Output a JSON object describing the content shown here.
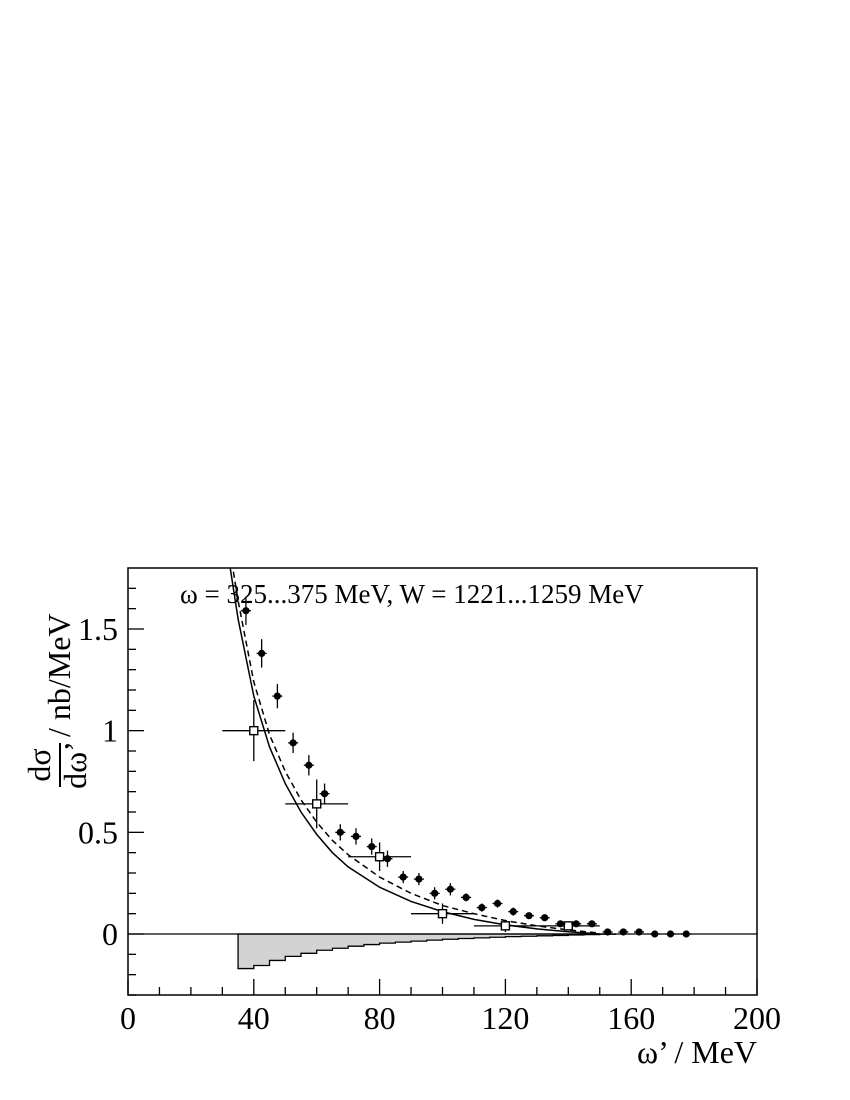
{
  "chart_data": {
    "type": "scatter",
    "annotation": "ω = 325...375 MeV, W = 1221...1259 MeV",
    "xlabel": "ω’ / MeV",
    "ylabel_numerator": "dσ",
    "ylabel_denominator": "dω’",
    "ylabel_unit": "/ nb/MeV",
    "xlim": [
      0,
      200
    ],
    "ylim": [
      -0.3,
      1.8
    ],
    "x_ticks": [
      0,
      40,
      80,
      120,
      160,
      200
    ],
    "x_tick_labels": [
      "0",
      "40",
      "80",
      "120",
      "160",
      "200"
    ],
    "y_ticks": [
      0,
      0.5,
      1,
      1.5
    ],
    "y_tick_labels": [
      "0",
      "0.5",
      "1",
      "1.5"
    ],
    "grid": false,
    "series": [
      {
        "marker": "filled-circle",
        "points": [
          {
            "x": 37.5,
            "y": 1.59,
            "yerr": 0.07
          },
          {
            "x": 42.5,
            "y": 1.38,
            "yerr": 0.07
          },
          {
            "x": 47.5,
            "y": 1.17,
            "yerr": 0.06
          },
          {
            "x": 52.5,
            "y": 0.94,
            "yerr": 0.05
          },
          {
            "x": 57.5,
            "y": 0.83,
            "yerr": 0.05
          },
          {
            "x": 62.5,
            "y": 0.69,
            "yerr": 0.05
          },
          {
            "x": 67.5,
            "y": 0.5,
            "yerr": 0.04
          },
          {
            "x": 72.5,
            "y": 0.48,
            "yerr": 0.04
          },
          {
            "x": 77.5,
            "y": 0.43,
            "yerr": 0.04
          },
          {
            "x": 82.5,
            "y": 0.37,
            "yerr": 0.04
          },
          {
            "x": 87.5,
            "y": 0.28,
            "yerr": 0.03
          },
          {
            "x": 92.5,
            "y": 0.27,
            "yerr": 0.03
          },
          {
            "x": 97.5,
            "y": 0.2,
            "yerr": 0.03
          },
          {
            "x": 102.5,
            "y": 0.22,
            "yerr": 0.03
          },
          {
            "x": 107.5,
            "y": 0.18,
            "yerr": 0.02
          },
          {
            "x": 112.5,
            "y": 0.13,
            "yerr": 0.02
          },
          {
            "x": 117.5,
            "y": 0.15,
            "yerr": 0.02
          },
          {
            "x": 122.5,
            "y": 0.11,
            "yerr": 0.02
          },
          {
            "x": 127.5,
            "y": 0.09,
            "yerr": 0.015
          },
          {
            "x": 132.5,
            "y": 0.08,
            "yerr": 0.015
          },
          {
            "x": 137.5,
            "y": 0.05,
            "yerr": 0.01
          },
          {
            "x": 142.5,
            "y": 0.05,
            "yerr": 0.01
          },
          {
            "x": 147.5,
            "y": 0.05,
            "yerr": 0.01
          },
          {
            "x": 152.5,
            "y": 0.01,
            "yerr": 0.005
          },
          {
            "x": 157.5,
            "y": 0.01,
            "yerr": 0.005
          },
          {
            "x": 162.5,
            "y": 0.01,
            "yerr": 0.005
          },
          {
            "x": 167.5,
            "y": 0.0,
            "yerr": 0.004
          },
          {
            "x": 172.5,
            "y": 0.0,
            "yerr": 0.004
          },
          {
            "x": 177.5,
            "y": 0.0,
            "yerr": 0.004
          }
        ]
      },
      {
        "marker": "open-square",
        "points": [
          {
            "x": 40,
            "y": 1.0,
            "xerr": 10,
            "yerr": 0.15
          },
          {
            "x": 60,
            "y": 0.64,
            "xerr": 10,
            "yerr": 0.12
          },
          {
            "x": 80,
            "y": 0.38,
            "xerr": 10,
            "yerr": 0.07
          },
          {
            "x": 100,
            "y": 0.1,
            "xerr": 10,
            "yerr": 0.05
          },
          {
            "x": 120,
            "y": 0.04,
            "xerr": 10,
            "yerr": 0.03
          },
          {
            "x": 140,
            "y": 0.04,
            "xerr": 10,
            "yerr": 0.02
          }
        ]
      },
      {
        "type": "line",
        "style": "solid",
        "x": [
          32,
          35,
          40,
          45,
          50,
          55,
          60,
          65,
          70,
          80,
          90,
          100,
          110,
          120,
          130,
          140,
          150
        ],
        "values": [
          1.85,
          1.55,
          1.17,
          0.92,
          0.74,
          0.6,
          0.49,
          0.4,
          0.33,
          0.23,
          0.16,
          0.11,
          0.072,
          0.045,
          0.025,
          0.011,
          0.0
        ]
      },
      {
        "type": "line",
        "style": "dashed",
        "x": [
          33,
          35,
          40,
          45,
          50,
          55,
          60,
          65,
          70,
          80,
          90,
          100,
          110,
          120,
          130,
          140,
          150
        ],
        "values": [
          1.83,
          1.64,
          1.24,
          0.98,
          0.8,
          0.66,
          0.55,
          0.46,
          0.39,
          0.28,
          0.2,
          0.14,
          0.1,
          0.066,
          0.04,
          0.02,
          0.004
        ]
      },
      {
        "type": "area",
        "style": "filled-histogram",
        "bin_width": 5,
        "x": [
          35,
          40,
          45,
          50,
          55,
          60,
          65,
          70,
          75,
          80,
          85,
          90,
          95,
          100,
          105,
          110,
          115,
          120,
          125,
          130,
          135,
          140,
          145,
          150
        ],
        "values": [
          -0.17,
          -0.155,
          -0.13,
          -0.11,
          -0.095,
          -0.08,
          -0.07,
          -0.06,
          -0.052,
          -0.045,
          -0.04,
          -0.035,
          -0.03,
          -0.026,
          -0.022,
          -0.019,
          -0.016,
          -0.013,
          -0.011,
          -0.009,
          -0.007,
          -0.005,
          -0.003,
          -0.001
        ]
      }
    ]
  }
}
